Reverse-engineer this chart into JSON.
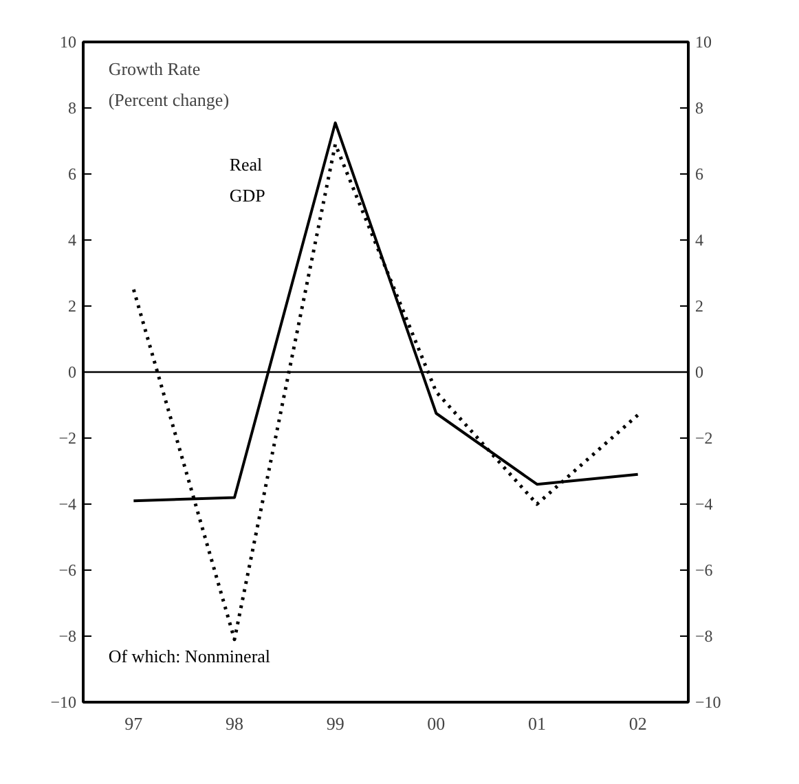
{
  "chart_data": {
    "type": "line",
    "title": "Growth Rate\n(Percent change)",
    "categories": [
      "97",
      "98",
      "99",
      "00",
      "01",
      "02"
    ],
    "series": [
      {
        "name": "Real\nGDP",
        "color": "#000000",
        "line_style": "solid",
        "values": [
          -3.9,
          -3.8,
          7.55,
          -1.25,
          -3.4,
          -3.1
        ]
      },
      {
        "name": "Of which: Nonmineral",
        "color": "#000000",
        "line_style": "dotted",
        "values": [
          2.5,
          -8.1,
          6.9,
          -0.6,
          -4.0,
          -1.3
        ]
      }
    ],
    "ylim": [
      -10,
      10
    ],
    "yticks": [
      -10,
      -8,
      -6,
      -4,
      -2,
      0,
      2,
      4,
      6,
      8,
      10
    ],
    "y2lim": [
      -10,
      10
    ],
    "y2ticks": [
      -10,
      -8,
      -6,
      -4,
      -2,
      0,
      2,
      4,
      6,
      8,
      10
    ],
    "ref_lines": [
      {
        "axis": "y",
        "value": 0,
        "color": "#000000"
      }
    ],
    "grid": false
  }
}
